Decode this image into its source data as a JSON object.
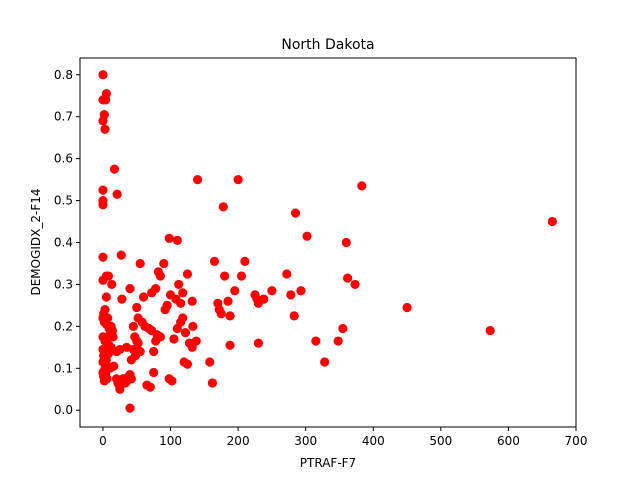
{
  "chart_data": {
    "type": "scatter",
    "title": "North Dakota",
    "xlabel": "PTRAF-F7",
    "ylabel": "DEMOGIDX_2-F14",
    "xlim": [
      -34,
      700
    ],
    "ylim": [
      -0.04,
      0.84
    ],
    "xticks": [
      0,
      100,
      200,
      300,
      400,
      500,
      600,
      700
    ],
    "yticks": [
      0.0,
      0.1,
      0.2,
      0.3,
      0.4,
      0.5,
      0.6,
      0.7,
      0.8
    ],
    "grid": false,
    "marker_color": "#ff0000",
    "series": [
      {
        "points": [
          [
            0,
            0.8
          ],
          [
            0,
            0.74
          ],
          [
            4,
            0.74
          ],
          [
            5,
            0.755
          ],
          [
            2,
            0.705
          ],
          [
            0,
            0.69
          ],
          [
            3,
            0.67
          ],
          [
            17,
            0.575
          ],
          [
            21,
            0.515
          ],
          [
            0,
            0.525
          ],
          [
            0,
            0.5
          ],
          [
            0,
            0.49
          ],
          [
            0,
            0.365
          ],
          [
            27,
            0.37
          ],
          [
            5,
            0.32
          ],
          [
            8,
            0.32
          ],
          [
            5,
            0.27
          ],
          [
            13,
            0.3
          ],
          [
            0,
            0.31
          ],
          [
            1,
            0.23
          ],
          [
            3,
            0.24
          ],
          [
            0,
            0.22
          ],
          [
            2,
            0.21
          ],
          [
            5,
            0.205
          ],
          [
            7,
            0.22
          ],
          [
            9,
            0.195
          ],
          [
            12,
            0.2
          ],
          [
            14,
            0.19
          ],
          [
            10,
            0.18
          ],
          [
            15,
            0.175
          ],
          [
            0,
            0.175
          ],
          [
            3,
            0.165
          ],
          [
            6,
            0.16
          ],
          [
            9,
            0.155
          ],
          [
            12,
            0.15
          ],
          [
            0,
            0.145
          ],
          [
            4,
            0.14
          ],
          [
            8,
            0.135
          ],
          [
            1,
            0.13
          ],
          [
            5,
            0.12
          ],
          [
            0,
            0.115
          ],
          [
            3,
            0.11
          ],
          [
            7,
            0.105
          ],
          [
            10,
            0.1
          ],
          [
            2,
            0.095
          ],
          [
            0,
            0.09
          ],
          [
            4,
            0.085
          ],
          [
            1,
            0.08
          ],
          [
            6,
            0.075
          ],
          [
            2,
            0.07
          ],
          [
            16,
            0.105
          ],
          [
            20,
            0.075
          ],
          [
            22,
            0.065
          ],
          [
            24,
            0.06
          ],
          [
            28,
            0.07
          ],
          [
            30,
            0.075
          ],
          [
            33,
            0.065
          ],
          [
            36,
            0.07
          ],
          [
            38,
            0.08
          ],
          [
            40,
            0.085
          ],
          [
            42,
            0.075
          ],
          [
            25,
            0.05
          ],
          [
            40,
            0.005
          ],
          [
            25,
            0.145
          ],
          [
            35,
            0.15
          ],
          [
            20,
            0.14
          ],
          [
            45,
            0.145
          ],
          [
            42,
            0.12
          ],
          [
            48,
            0.13
          ],
          [
            52,
            0.16
          ],
          [
            55,
            0.14
          ],
          [
            47,
            0.175
          ],
          [
            50,
            0.165
          ],
          [
            45,
            0.2
          ],
          [
            58,
            0.21
          ],
          [
            62,
            0.2
          ],
          [
            68,
            0.195
          ],
          [
            72,
            0.19
          ],
          [
            75,
            0.14
          ],
          [
            78,
            0.165
          ],
          [
            80,
            0.18
          ],
          [
            85,
            0.175
          ],
          [
            65,
            0.06
          ],
          [
            70,
            0.055
          ],
          [
            75,
            0.09
          ],
          [
            98,
            0.075
          ],
          [
            102,
            0.07
          ],
          [
            105,
            0.17
          ],
          [
            110,
            0.195
          ],
          [
            115,
            0.21
          ],
          [
            118,
            0.22
          ],
          [
            122,
            0.185
          ],
          [
            128,
            0.16
          ],
          [
            132,
            0.15
          ],
          [
            133,
            0.2
          ],
          [
            138,
            0.165
          ],
          [
            120,
            0.115
          ],
          [
            125,
            0.11
          ],
          [
            28,
            0.265
          ],
          [
            40,
            0.29
          ],
          [
            50,
            0.245
          ],
          [
            55,
            0.35
          ],
          [
            52,
            0.22
          ],
          [
            60,
            0.27
          ],
          [
            72,
            0.28
          ],
          [
            78,
            0.29
          ],
          [
            82,
            0.33
          ],
          [
            85,
            0.32
          ],
          [
            90,
            0.35
          ],
          [
            92,
            0.24
          ],
          [
            95,
            0.25
          ],
          [
            100,
            0.275
          ],
          [
            108,
            0.265
          ],
          [
            112,
            0.3
          ],
          [
            115,
            0.255
          ],
          [
            118,
            0.28
          ],
          [
            125,
            0.325
          ],
          [
            132,
            0.26
          ],
          [
            98,
            0.41
          ],
          [
            110,
            0.405
          ],
          [
            140,
            0.55
          ],
          [
            158,
            0.115
          ],
          [
            162,
            0.065
          ],
          [
            165,
            0.355
          ],
          [
            170,
            0.255
          ],
          [
            172,
            0.24
          ],
          [
            175,
            0.23
          ],
          [
            178,
            0.485
          ],
          [
            180,
            0.32
          ],
          [
            185,
            0.26
          ],
          [
            188,
            0.225
          ],
          [
            188,
            0.155
          ],
          [
            195,
            0.285
          ],
          [
            200,
            0.55
          ],
          [
            205,
            0.32
          ],
          [
            210,
            0.355
          ],
          [
            225,
            0.275
          ],
          [
            228,
            0.265
          ],
          [
            230,
            0.255
          ],
          [
            230,
            0.16
          ],
          [
            238,
            0.265
          ],
          [
            250,
            0.285
          ],
          [
            272,
            0.325
          ],
          [
            278,
            0.275
          ],
          [
            283,
            0.225
          ],
          [
            285,
            0.47
          ],
          [
            293,
            0.285
          ],
          [
            302,
            0.415
          ],
          [
            315,
            0.165
          ],
          [
            328,
            0.115
          ],
          [
            348,
            0.165
          ],
          [
            355,
            0.195
          ],
          [
            360,
            0.4
          ],
          [
            362,
            0.315
          ],
          [
            373,
            0.3
          ],
          [
            383,
            0.535
          ],
          [
            450,
            0.245
          ],
          [
            573,
            0.19
          ],
          [
            665,
            0.45
          ]
        ]
      }
    ]
  }
}
